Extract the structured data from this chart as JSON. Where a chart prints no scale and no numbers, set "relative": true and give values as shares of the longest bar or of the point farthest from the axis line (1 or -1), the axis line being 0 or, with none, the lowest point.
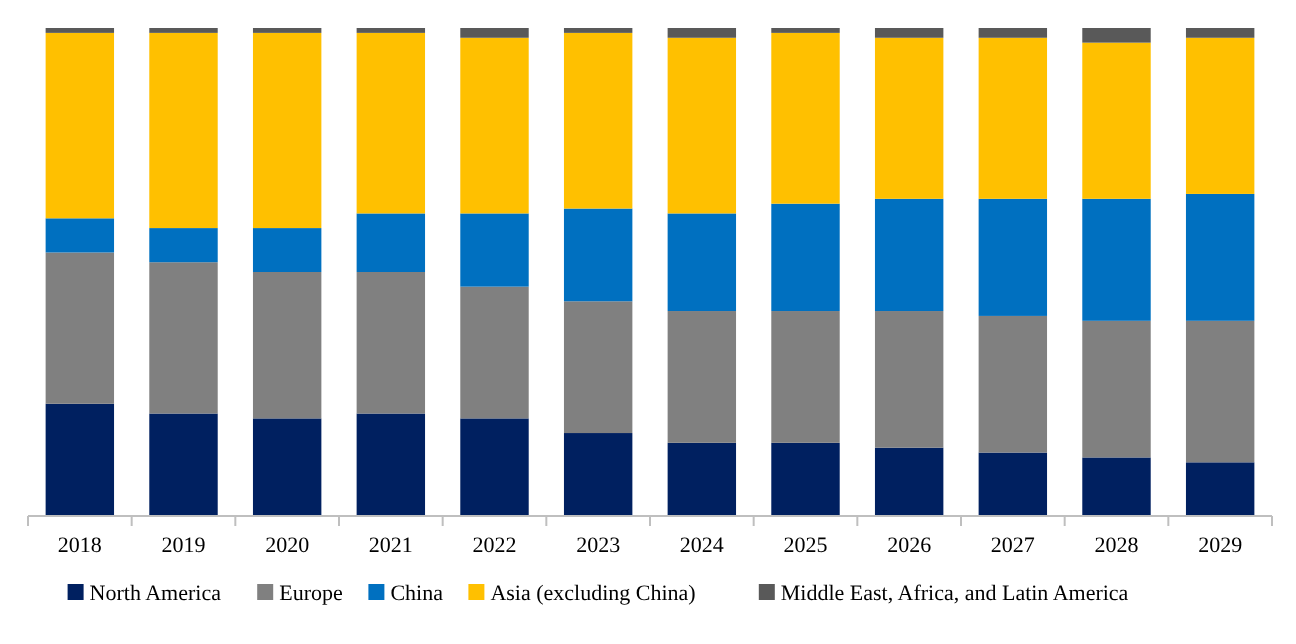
{
  "chart_data": {
    "type": "bar",
    "stacked": true,
    "relative": true,
    "legend": "bottom",
    "categories": [
      "2018",
      "2019",
      "2020",
      "2021",
      "2022",
      "2023",
      "2024",
      "2025",
      "2026",
      "2027",
      "2028",
      "2029"
    ],
    "series": [
      {
        "name": "North America",
        "color": "#002060",
        "values": [
          0.23,
          0.21,
          0.2,
          0.21,
          0.2,
          0.17,
          0.15,
          0.15,
          0.14,
          0.13,
          0.12,
          0.11
        ]
      },
      {
        "name": "Europe",
        "color": "#808080",
        "values": [
          0.31,
          0.31,
          0.3,
          0.29,
          0.27,
          0.27,
          0.27,
          0.27,
          0.28,
          0.28,
          0.28,
          0.29
        ]
      },
      {
        "name": "China",
        "color": "#0070c0",
        "values": [
          0.07,
          0.07,
          0.09,
          0.12,
          0.15,
          0.19,
          0.2,
          0.22,
          0.23,
          0.24,
          0.25,
          0.26
        ]
      },
      {
        "name": "Asia (excluding China)",
        "color": "#ffc000",
        "values": [
          0.38,
          0.4,
          0.4,
          0.37,
          0.36,
          0.36,
          0.36,
          0.35,
          0.33,
          0.33,
          0.32,
          0.32
        ]
      },
      {
        "name": "Middle East, Africa, and Latin America",
        "color": "#595959",
        "values": [
          0.01,
          0.01,
          0.01,
          0.01,
          0.02,
          0.01,
          0.02,
          0.01,
          0.02,
          0.02,
          0.03,
          0.02
        ]
      }
    ]
  }
}
